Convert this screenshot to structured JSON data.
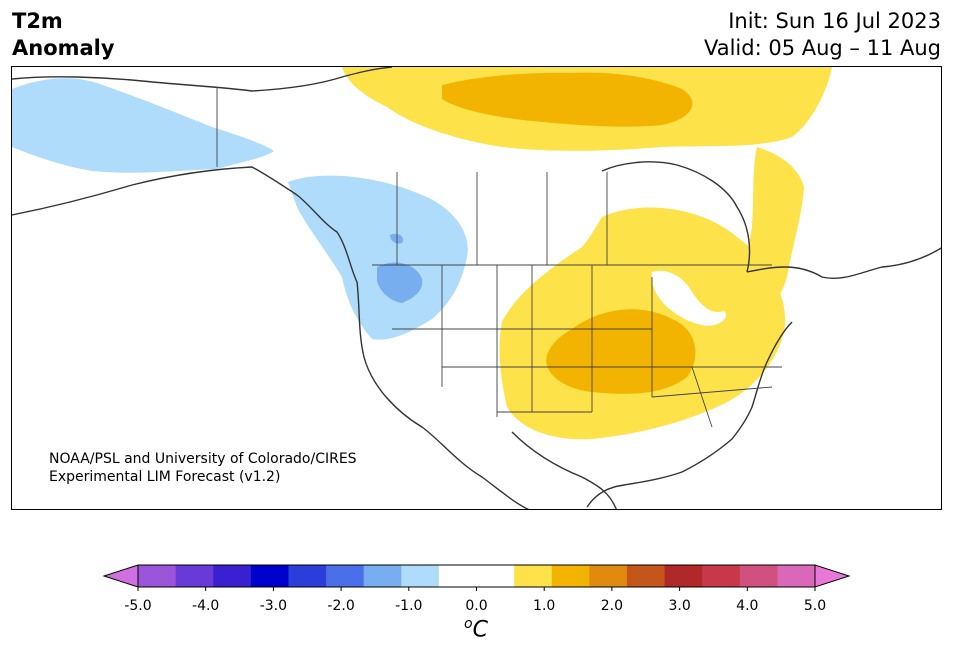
{
  "header": {
    "variable": "T2m",
    "variable_sub": "Anomaly",
    "init": "Init: Sun 16 Jul 2023",
    "valid": "Valid: 05 Aug – 11 Aug"
  },
  "credit": {
    "line1": "NOAA/PSL and University of Colorado/CIRES",
    "line2": "Experimental LIM Forecast (v1.2)"
  },
  "colorbar": {
    "unit_base": "C",
    "unit_sup": "o",
    "ticks": [
      "-5.0",
      "-4.0",
      "-3.0",
      "-2.0",
      "-1.0",
      "0.0",
      "1.0",
      "2.0",
      "3.0",
      "4.0",
      "5.0"
    ],
    "colors": [
      "#9a55d9",
      "#6a3ad9",
      "#3a20d0",
      "#0000cc",
      "#2a3fd9",
      "#4a6fe8",
      "#76aef0",
      "#aedcfa",
      "#ffffff",
      "#ffffff",
      "#fde24a",
      "#f2b400",
      "#e08a10",
      "#c4561a",
      "#b02828",
      "#c8384a",
      "#d05080",
      "#da68b8"
    ],
    "under_color": "#d070e0",
    "over_color": "#e878d8"
  },
  "legend_colors": {
    "neg_light": "#aedcfa",
    "neg_mid": "#76aef0",
    "pos_light": "#fde24a",
    "pos_mid": "#f2b400"
  }
}
